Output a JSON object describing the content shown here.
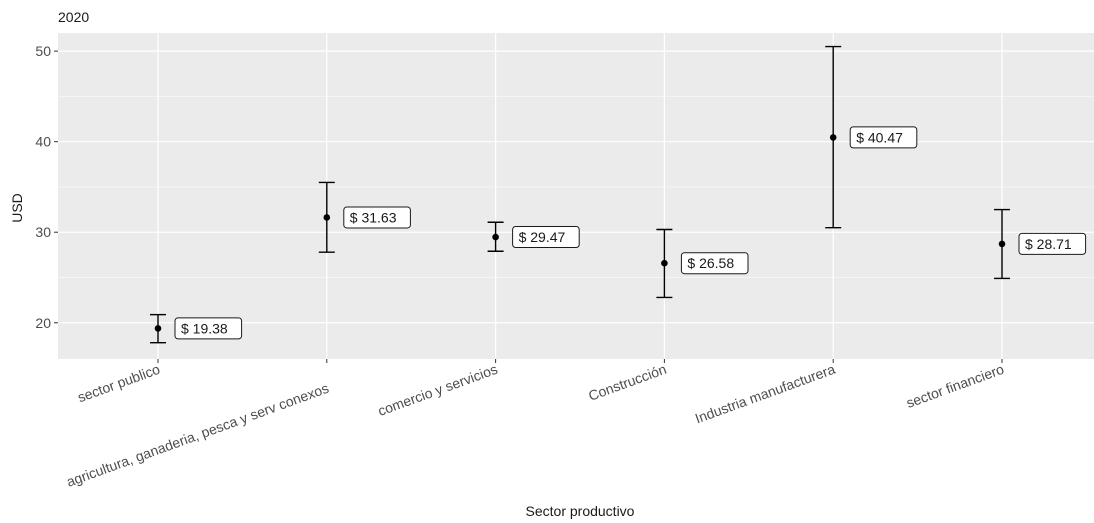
{
  "chart_data": {
    "type": "errorbar",
    "title": "2020",
    "xlabel": "Sector productivo",
    "ylabel": "USD",
    "ylim": [
      16,
      52
    ],
    "yticks": [
      20,
      30,
      40,
      50
    ],
    "grid": true,
    "categories": [
      "sector publico",
      "agricultura, ganaderia, pesca y serv conexos",
      "comercio y servicios",
      "Construcción",
      "Industria manufacturera",
      "sector financiero"
    ],
    "series": [
      {
        "values": [
          19.38,
          31.63,
          29.47,
          26.58,
          40.47,
          28.71
        ],
        "lower": [
          17.8,
          27.8,
          27.9,
          22.8,
          30.5,
          24.9
        ],
        "upper": [
          20.9,
          35.5,
          31.1,
          30.3,
          50.5,
          32.5
        ],
        "labels": [
          "$ 19.38",
          "$ 31.63",
          "$ 29.47",
          "$ 26.58",
          "$ 40.47",
          "$ 28.71"
        ]
      }
    ]
  },
  "colors": {
    "panel": "#ebebeb",
    "grid_major": "#ffffff",
    "grid_minor": "#f5f5f5",
    "marks": "#000000",
    "axis_text": "#4d4d4d"
  }
}
